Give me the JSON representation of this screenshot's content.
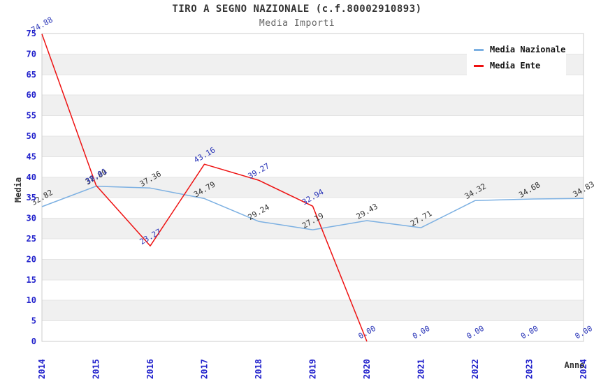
{
  "header": {
    "title": "TIRO A SEGNO NAZIONALE (c.f.80002910893)",
    "subtitle": "Media Importi"
  },
  "legend": {
    "items": [
      {
        "label": "Media Nazionale",
        "color": "#7cb0e2"
      },
      {
        "label": "Media Ente",
        "color": "#ee1111"
      }
    ]
  },
  "chart_data": {
    "type": "line",
    "title": "TIRO A SEGNO NAZIONALE (c.f.80002910893)",
    "subtitle": "Media Importi",
    "xlabel": "Anno",
    "ylabel": "Media",
    "ylim": [
      0,
      75
    ],
    "y_ticks": [
      0,
      5,
      10,
      15,
      20,
      25,
      30,
      35,
      40,
      45,
      50,
      55,
      60,
      65,
      70,
      75
    ],
    "categories": [
      "2014",
      "2015",
      "2016",
      "2017",
      "2018",
      "2019",
      "2020",
      "2021",
      "2022",
      "2023",
      "2024"
    ],
    "grid": "horizontal-bands",
    "legend_position": "top-right",
    "series": [
      {
        "name": "Media Nazionale",
        "color": "#7cb0e2",
        "label_color": "#333333",
        "values": [
          32.82,
          37.8,
          37.36,
          34.79,
          29.24,
          27.19,
          29.43,
          27.71,
          34.32,
          34.68,
          34.83
        ],
        "point_labels": [
          "32.82",
          "37.80",
          "37.36",
          "34.79",
          "29.24",
          "27.19",
          "29.43",
          "27.71",
          "34.32",
          "34.68",
          "34.83"
        ]
      },
      {
        "name": "Media Ente",
        "color": "#ee1111",
        "label_color": "#2a35b8",
        "values": [
          74.88,
          38.01,
          23.27,
          43.16,
          39.27,
          32.94,
          0,
          0,
          0,
          0,
          0
        ],
        "point_labels": [
          "74.88",
          "38.01",
          "23.27",
          "43.16",
          "39.27",
          "32.94",
          "0.00",
          "0.00",
          "0.00",
          "0.00",
          "0.00"
        ]
      }
    ],
    "styles": {
      "tick_color": "#2222cc",
      "axis_title_color": "#333333",
      "band_color": "#f0f0f0",
      "gridline_color": "#e4e4e4",
      "border_color": "#cccccc",
      "background": "#ffffff"
    }
  }
}
